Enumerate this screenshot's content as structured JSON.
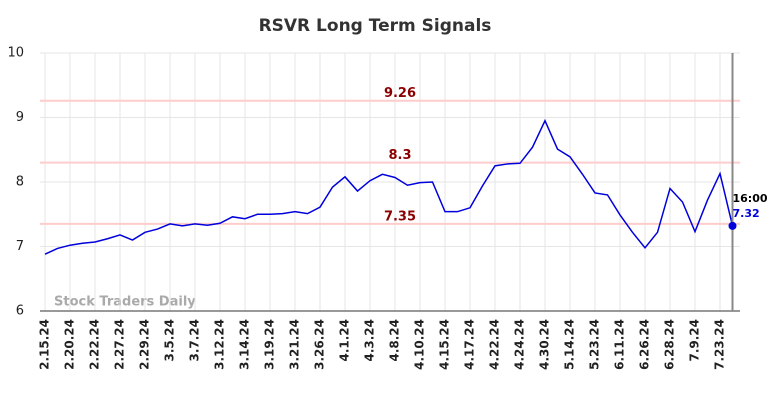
{
  "chart_data": {
    "type": "line",
    "title": "RSVR Long Term Signals",
    "categories": [
      "2.15.24",
      null,
      "2.20.24",
      null,
      "2.22.24",
      null,
      "2.27.24",
      null,
      "2.29.24",
      null,
      "3.5.24",
      null,
      "3.7.24",
      null,
      "3.12.24",
      null,
      "3.14.24",
      null,
      "3.19.24",
      null,
      "3.21.24",
      null,
      "3.26.24",
      null,
      "4.1.24",
      null,
      "4.3.24",
      null,
      "4.8.24",
      null,
      "4.10.24",
      null,
      "4.15.24",
      null,
      "4.17.24",
      null,
      "4.22.24",
      null,
      "4.24.24",
      null,
      "4.30.24",
      null,
      "5.14.24",
      null,
      "5.23.24",
      null,
      "6.11.24",
      null,
      "6.26.24",
      null,
      "6.28.24",
      null,
      "7.9.24",
      null,
      "7.23.24",
      null
    ],
    "series": [
      {
        "name": "RSVR",
        "color": "#0000dd",
        "values": [
          6.88,
          6.97,
          7.02,
          7.05,
          7.07,
          7.12,
          7.18,
          7.1,
          7.22,
          7.27,
          7.35,
          7.32,
          7.35,
          7.33,
          7.36,
          7.46,
          7.43,
          7.5,
          7.5,
          7.51,
          7.54,
          7.51,
          7.61,
          7.92,
          8.08,
          7.86,
          8.02,
          8.12,
          8.07,
          7.95,
          7.99,
          8.0,
          7.54,
          7.54,
          7.6,
          7.94,
          8.25,
          8.28,
          8.29,
          8.54,
          8.95,
          8.51,
          8.39,
          8.12,
          7.83,
          7.8,
          7.49,
          7.22,
          6.98,
          7.22,
          7.9,
          7.69,
          7.23,
          7.72,
          8.13,
          7.32
        ]
      }
    ],
    "ylim": [
      6,
      10
    ],
    "yticks": [
      6,
      7,
      8,
      9,
      10
    ],
    "grid": true,
    "hlines": [
      {
        "value": 9.26,
        "color": "#ffcccc",
        "label_color": "#8b0000"
      },
      {
        "value": 8.3,
        "color": "#ffcccc",
        "label_color": "#8b0000"
      },
      {
        "value": 7.35,
        "color": "#ffcccc",
        "label_color": "#8b0000"
      }
    ],
    "last_time": "16:00",
    "watermark": "Stock Traders Daily"
  }
}
